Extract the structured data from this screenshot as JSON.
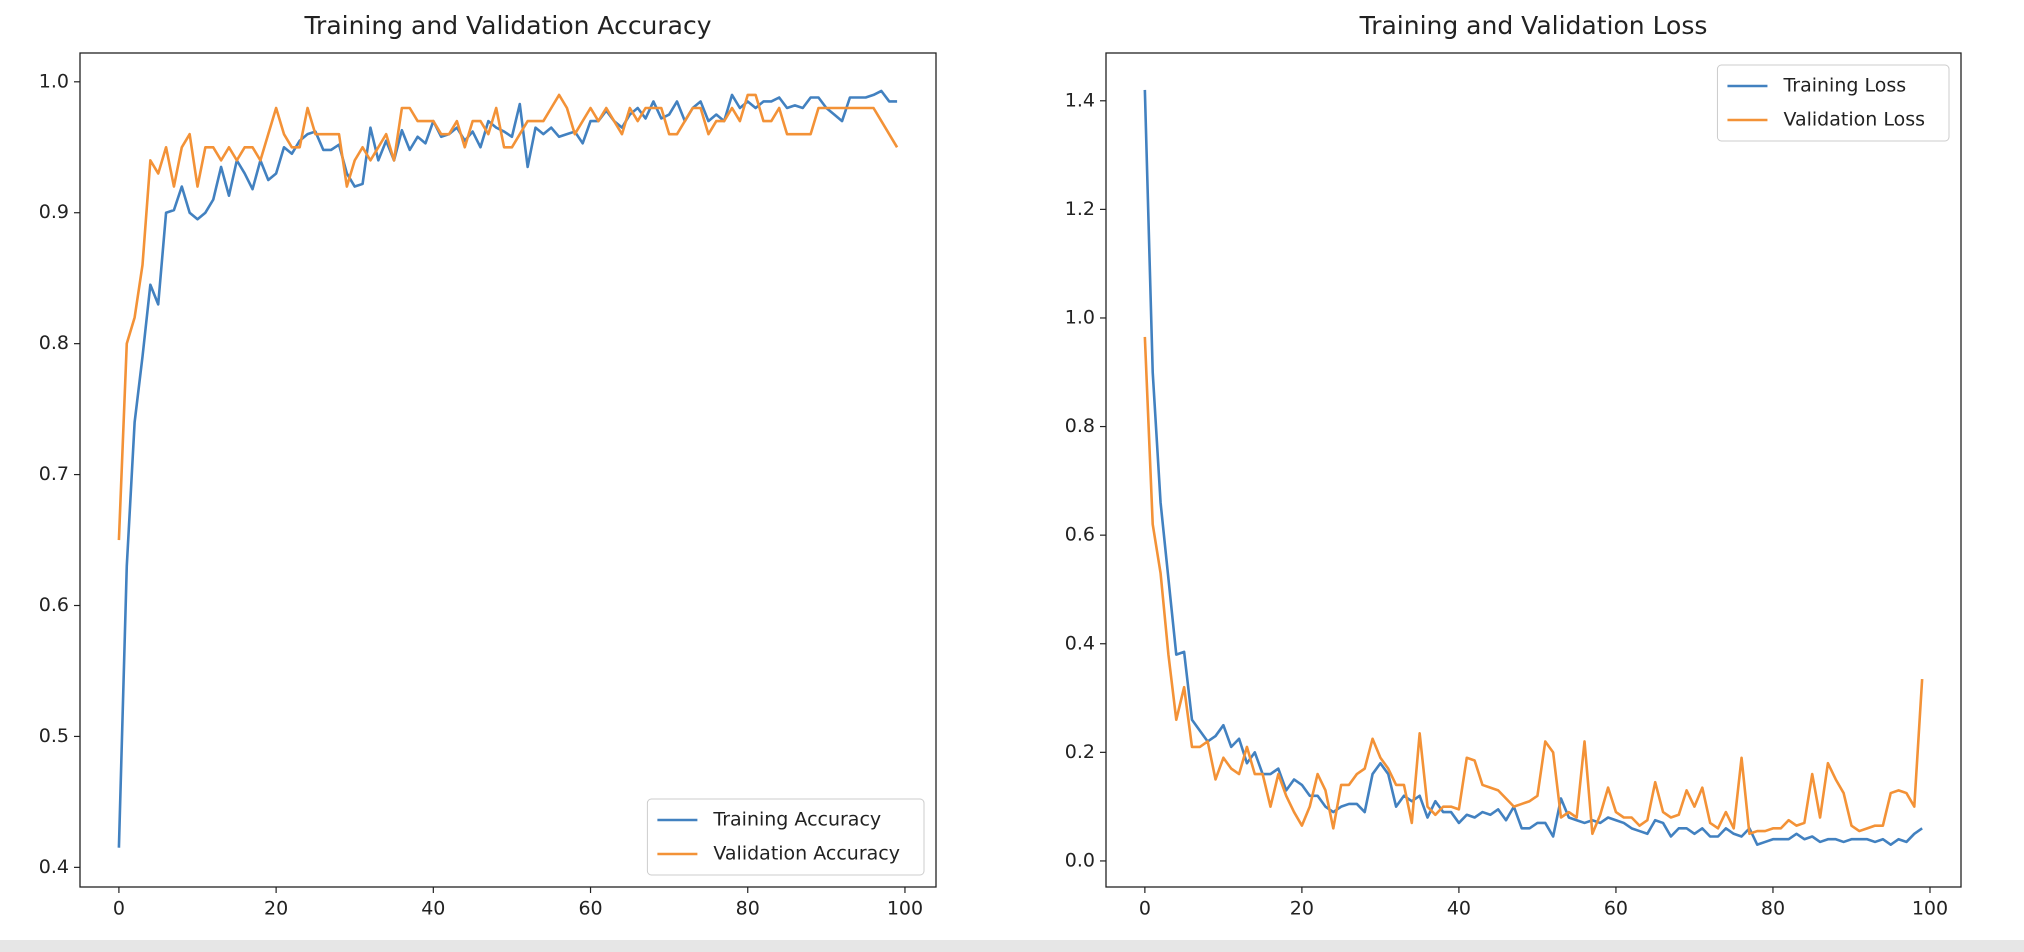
{
  "chart_data": [
    {
      "type": "line",
      "title": "Training and Validation Accuracy",
      "x": [
        0,
        1,
        2,
        3,
        4,
        5,
        6,
        7,
        8,
        9,
        10,
        11,
        12,
        13,
        14,
        15,
        16,
        17,
        18,
        19,
        20,
        21,
        22,
        23,
        24,
        25,
        26,
        27,
        28,
        29,
        30,
        31,
        32,
        33,
        34,
        35,
        36,
        37,
        38,
        39,
        40,
        41,
        42,
        43,
        44,
        45,
        46,
        47,
        48,
        49,
        50,
        51,
        52,
        53,
        54,
        55,
        56,
        57,
        58,
        59,
        60,
        61,
        62,
        63,
        64,
        65,
        66,
        67,
        68,
        69,
        70,
        71,
        72,
        73,
        74,
        75,
        76,
        77,
        78,
        79,
        80,
        81,
        82,
        83,
        84,
        85,
        86,
        87,
        88,
        89,
        90,
        91,
        92,
        93,
        94,
        95,
        96,
        97,
        98,
        99
      ],
      "series": [
        {
          "name": "Training Accuracy",
          "color": "#4281c0",
          "values": [
            0.415,
            0.63,
            0.74,
            0.79,
            0.845,
            0.83,
            0.9,
            0.902,
            0.92,
            0.9,
            0.895,
            0.9,
            0.91,
            0.935,
            0.913,
            0.94,
            0.93,
            0.918,
            0.94,
            0.925,
            0.93,
            0.95,
            0.945,
            0.955,
            0.96,
            0.962,
            0.948,
            0.948,
            0.952,
            0.93,
            0.92,
            0.922,
            0.965,
            0.94,
            0.955,
            0.94,
            0.963,
            0.948,
            0.958,
            0.953,
            0.97,
            0.958,
            0.96,
            0.965,
            0.955,
            0.962,
            0.95,
            0.97,
            0.965,
            0.962,
            0.958,
            0.983,
            0.935,
            0.965,
            0.96,
            0.965,
            0.958,
            0.96,
            0.962,
            0.953,
            0.97,
            0.97,
            0.978,
            0.97,
            0.965,
            0.975,
            0.98,
            0.972,
            0.985,
            0.972,
            0.975,
            0.985,
            0.97,
            0.98,
            0.985,
            0.97,
            0.975,
            0.97,
            0.99,
            0.98,
            0.985,
            0.98,
            0.985,
            0.985,
            0.988,
            0.98,
            0.982,
            0.98,
            0.988,
            0.988,
            0.98,
            0.975,
            0.97,
            0.988,
            0.988,
            0.988,
            0.99,
            0.993,
            0.985,
            0.985
          ]
        },
        {
          "name": "Validation Accuracy",
          "color": "#f39237",
          "values": [
            0.65,
            0.8,
            0.82,
            0.86,
            0.94,
            0.93,
            0.95,
            0.92,
            0.95,
            0.96,
            0.92,
            0.95,
            0.95,
            0.94,
            0.95,
            0.94,
            0.95,
            0.95,
            0.94,
            0.96,
            0.98,
            0.96,
            0.95,
            0.95,
            0.98,
            0.96,
            0.96,
            0.96,
            0.96,
            0.92,
            0.94,
            0.95,
            0.94,
            0.95,
            0.96,
            0.94,
            0.98,
            0.98,
            0.97,
            0.97,
            0.97,
            0.96,
            0.96,
            0.97,
            0.95,
            0.97,
            0.97,
            0.96,
            0.98,
            0.95,
            0.95,
            0.96,
            0.97,
            0.97,
            0.97,
            0.98,
            0.99,
            0.98,
            0.96,
            0.97,
            0.98,
            0.97,
            0.98,
            0.97,
            0.96,
            0.98,
            0.97,
            0.98,
            0.98,
            0.98,
            0.96,
            0.96,
            0.97,
            0.98,
            0.98,
            0.96,
            0.97,
            0.97,
            0.98,
            0.97,
            0.99,
            0.99,
            0.97,
            0.97,
            0.98,
            0.96,
            0.96,
            0.96,
            0.96,
            0.98,
            0.98,
            0.98,
            0.98,
            0.98,
            0.98,
            0.98,
            0.98,
            0.97,
            0.96,
            0.95
          ]
        }
      ],
      "xlim": [
        -4.95,
        103.95
      ],
      "ylim": [
        0.385,
        1.022
      ],
      "xticks": [
        0,
        20,
        40,
        60,
        80,
        100
      ],
      "yticks": [
        0.4,
        0.5,
        0.6,
        0.7,
        0.8,
        0.9,
        {
          "value": 1,
          "label": "1.0"
        }
      ],
      "legend": "lower right"
    },
    {
      "type": "line",
      "title": "Training and Validation Loss",
      "x": [
        0,
        1,
        2,
        3,
        4,
        5,
        6,
        7,
        8,
        9,
        10,
        11,
        12,
        13,
        14,
        15,
        16,
        17,
        18,
        19,
        20,
        21,
        22,
        23,
        24,
        25,
        26,
        27,
        28,
        29,
        30,
        31,
        32,
        33,
        34,
        35,
        36,
        37,
        38,
        39,
        40,
        41,
        42,
        43,
        44,
        45,
        46,
        47,
        48,
        49,
        50,
        51,
        52,
        53,
        54,
        55,
        56,
        57,
        58,
        59,
        60,
        61,
        62,
        63,
        64,
        65,
        66,
        67,
        68,
        69,
        70,
        71,
        72,
        73,
        74,
        75,
        76,
        77,
        78,
        79,
        80,
        81,
        82,
        83,
        84,
        85,
        86,
        87,
        88,
        89,
        90,
        91,
        92,
        93,
        94,
        95,
        96,
        97,
        98,
        99
      ],
      "series": [
        {
          "name": "Training Loss",
          "color": "#4281c0",
          "values": [
            1.42,
            0.9,
            0.66,
            0.52,
            0.38,
            0.385,
            0.26,
            0.24,
            0.22,
            0.23,
            0.25,
            0.21,
            0.225,
            0.18,
            0.2,
            0.16,
            0.16,
            0.17,
            0.13,
            0.15,
            0.14,
            0.12,
            0.12,
            0.1,
            0.09,
            0.1,
            0.105,
            0.105,
            0.09,
            0.16,
            0.18,
            0.16,
            0.1,
            0.12,
            0.11,
            0.12,
            0.08,
            0.11,
            0.09,
            0.09,
            0.07,
            0.085,
            0.08,
            0.09,
            0.085,
            0.095,
            0.075,
            0.1,
            0.06,
            0.06,
            0.07,
            0.07,
            0.045,
            0.115,
            0.08,
            0.075,
            0.07,
            0.075,
            0.07,
            0.08,
            0.075,
            0.07,
            0.06,
            0.055,
            0.05,
            0.075,
            0.07,
            0.045,
            0.06,
            0.06,
            0.05,
            0.06,
            0.045,
            0.045,
            0.06,
            0.05,
            0.045,
            0.06,
            0.03,
            0.035,
            0.04,
            0.04,
            0.04,
            0.05,
            0.04,
            0.045,
            0.035,
            0.04,
            0.04,
            0.035,
            0.04,
            0.04,
            0.04,
            0.035,
            0.04,
            0.03,
            0.04,
            0.035,
            0.05,
            0.06
          ]
        },
        {
          "name": "Validation Loss",
          "color": "#f39237",
          "values": [
            0.965,
            0.62,
            0.53,
            0.38,
            0.26,
            0.32,
            0.21,
            0.21,
            0.22,
            0.15,
            0.19,
            0.17,
            0.16,
            0.21,
            0.16,
            0.16,
            0.1,
            0.16,
            0.12,
            0.09,
            0.065,
            0.1,
            0.16,
            0.13,
            0.06,
            0.14,
            0.14,
            0.16,
            0.17,
            0.225,
            0.19,
            0.17,
            0.14,
            0.14,
            0.07,
            0.235,
            0.1,
            0.085,
            0.1,
            0.1,
            0.095,
            0.19,
            0.185,
            0.14,
            0.135,
            0.13,
            0.115,
            0.1,
            0.105,
            0.11,
            0.12,
            0.22,
            0.2,
            0.08,
            0.09,
            0.08,
            0.22,
            0.05,
            0.085,
            0.135,
            0.09,
            0.08,
            0.08,
            0.065,
            0.075,
            0.145,
            0.09,
            0.08,
            0.085,
            0.13,
            0.1,
            0.135,
            0.07,
            0.06,
            0.09,
            0.06,
            0.19,
            0.05,
            0.055,
            0.055,
            0.06,
            0.06,
            0.075,
            0.065,
            0.07,
            0.16,
            0.08,
            0.18,
            0.15,
            0.125,
            0.065,
            0.055,
            0.06,
            0.065,
            0.065,
            0.125,
            0.13,
            0.125,
            0.1,
            0.335
          ]
        }
      ],
      "xlim": [
        -4.95,
        103.95
      ],
      "ylim": [
        -0.048,
        1.488
      ],
      "xticks": [
        0,
        20,
        40,
        60,
        80,
        100
      ],
      "yticks": [
        {
          "value": 0,
          "label": "0.0"
        },
        0.2,
        0.4,
        0.6,
        0.8,
        {
          "value": 1,
          "label": "1.0"
        },
        1.2,
        1.4
      ],
      "legend": "upper right"
    }
  ]
}
